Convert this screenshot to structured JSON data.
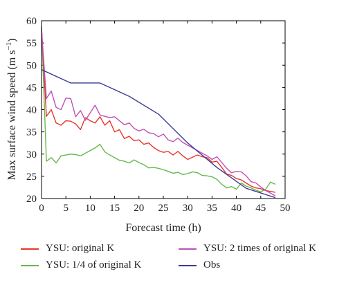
{
  "chart_data": {
    "type": "line",
    "xlabel": "Forecast time (h)",
    "ylabel": "Max surface wind speed (m s",
    "ylabel_sup": "−1",
    "ylabel_close": ")",
    "xlim": [
      0,
      50
    ],
    "ylim": [
      20,
      60
    ],
    "xticks": [
      0,
      5,
      10,
      15,
      20,
      25,
      30,
      35,
      40,
      45,
      50
    ],
    "yticks": [
      20,
      25,
      30,
      35,
      40,
      45,
      50,
      55,
      60
    ],
    "grid": false,
    "legend_placement": "below",
    "series": [
      {
        "name": "YSU: original K",
        "color": "#e8352a",
        "x": [
          0,
          1,
          2,
          3,
          4,
          5,
          6,
          7,
          8,
          9,
          10,
          11,
          12,
          13,
          14,
          15,
          16,
          17,
          18,
          19,
          20,
          21,
          22,
          23,
          24,
          25,
          26,
          27,
          28,
          29,
          30,
          31,
          32,
          33,
          34,
          35,
          36,
          37,
          38,
          39,
          40,
          41,
          42,
          43,
          44,
          45,
          46,
          47,
          48
        ],
        "y": [
          58.5,
          38.5,
          40,
          37,
          36.5,
          37.5,
          37.4,
          36.8,
          35.5,
          38.2,
          37.5,
          37,
          38.4,
          36.5,
          37.5,
          35,
          35.5,
          33.5,
          34,
          33,
          33.2,
          32.2,
          32.5,
          31.5,
          30.8,
          30.4,
          30.6,
          29.8,
          30.6,
          29.6,
          28.8,
          29.3,
          29.8,
          29.4,
          29.2,
          28.2,
          28.4,
          27,
          25.5,
          25.2,
          24.5,
          24.2,
          23.5,
          22.8,
          22.4,
          22.2,
          21.8,
          21.6,
          21.4
        ]
      },
      {
        "name": "YSU: 2 times of original K",
        "color": "#c14fb6",
        "x": [
          0,
          1,
          2,
          3,
          4,
          5,
          6,
          7,
          8,
          9,
          10,
          11,
          12,
          13,
          14,
          15,
          16,
          17,
          18,
          19,
          20,
          21,
          22,
          23,
          24,
          25,
          26,
          27,
          28,
          29,
          30,
          31,
          32,
          33,
          34,
          35,
          36,
          37,
          38,
          39,
          40,
          41,
          42,
          43,
          44,
          45,
          46,
          47,
          48
        ],
        "y": [
          58,
          42.5,
          44.2,
          40.5,
          40,
          42.6,
          42.5,
          38.4,
          39.8,
          37.6,
          39.3,
          41,
          38.8,
          38.5,
          38.2,
          38.4,
          37.5,
          36.6,
          37,
          35.8,
          35.2,
          35.6,
          34.8,
          34.6,
          33.9,
          34.5,
          33.2,
          32.8,
          33.6,
          32.6,
          32,
          31.4,
          30.8,
          30.2,
          29.6,
          28.8,
          29.4,
          28.1,
          26.8,
          25.8,
          26.1,
          26,
          25.1,
          23.8,
          23.5,
          22.6,
          21.8,
          21.2,
          20.6
        ]
      },
      {
        "name": "YSU: 1/4 of original K",
        "color": "#63b94a",
        "x": [
          0,
          1,
          2,
          3,
          4,
          5,
          6,
          7,
          8,
          9,
          10,
          11,
          12,
          13,
          14,
          15,
          16,
          17,
          18,
          19,
          20,
          21,
          22,
          23,
          24,
          25,
          26,
          27,
          28,
          29,
          30,
          31,
          32,
          33,
          34,
          35,
          36,
          37,
          38,
          39,
          40,
          41,
          42,
          43,
          44,
          45,
          46,
          47,
          48
        ],
        "y": [
          58.8,
          28.4,
          29.2,
          28,
          29.6,
          29.8,
          30,
          29.9,
          29.6,
          30.2,
          30.8,
          31.4,
          32.2,
          30.5,
          29.8,
          29.2,
          28.6,
          28.4,
          28,
          28.7,
          28.1,
          27.6,
          26.9,
          27,
          26.8,
          26.5,
          26.1,
          25.7,
          25.9,
          25.4,
          25.6,
          26,
          25.8,
          25.2,
          25.1,
          24.9,
          24.3,
          23.2,
          22.4,
          22.7,
          22.1,
          23.5,
          22.8,
          22.4,
          21.9,
          21.5,
          22.1,
          23.7,
          23.2
        ]
      },
      {
        "name": "Obs",
        "color": "#3b3b97",
        "x": [
          0,
          6,
          12,
          18,
          24,
          30,
          36,
          42,
          48
        ],
        "y": [
          49,
          46,
          46,
          43,
          39,
          32.5,
          27,
          22.3,
          20.2
        ]
      }
    ]
  }
}
